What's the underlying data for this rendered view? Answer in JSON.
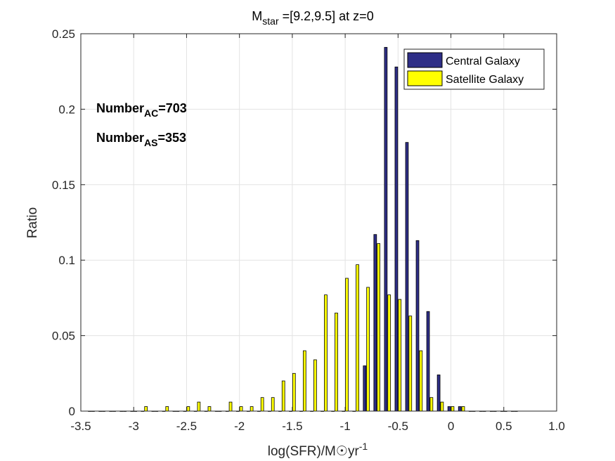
{
  "chart_data": {
    "type": "bar",
    "title": {
      "main": "M",
      "sub": "star",
      "rest": " =[9.2,9.5] at z=0"
    },
    "xlabel": {
      "main": "log(SFR)/M",
      "symbol": "☉",
      "unit": "yr",
      "exp": "-1"
    },
    "ylabel": "Ratio",
    "xlim": [
      -3.5,
      1.0
    ],
    "ylim": [
      0,
      0.25
    ],
    "xticks": [
      -3.5,
      -3,
      -2.5,
      -2,
      -1.5,
      -1,
      -0.5,
      0,
      0.5,
      1
    ],
    "xtick_labels": [
      "-3.5",
      "-3",
      "-2.5",
      "-2",
      "-1.5",
      "-1",
      "-0.5",
      "0",
      "0.5",
      "1.0"
    ],
    "yticks": [
      0,
      0.05,
      0.1,
      0.15,
      0.2,
      0.25
    ],
    "ytick_labels": [
      "0",
      "0.05",
      "0.1",
      "0.15",
      "0.2",
      "0.25"
    ],
    "grid": true,
    "legend_position": "top-right",
    "x": [
      -3.4,
      -3.3,
      -3.2,
      -3.1,
      -3.0,
      -2.9,
      -2.8,
      -2.7,
      -2.6,
      -2.5,
      -2.4,
      -2.3,
      -2.2,
      -2.1,
      -2.0,
      -1.9,
      -1.8,
      -1.7,
      -1.6,
      -1.5,
      -1.4,
      -1.3,
      -1.2,
      -1.1,
      -1.0,
      -0.9,
      -0.8,
      -0.7,
      -0.6,
      -0.5,
      -0.4,
      -0.3,
      -0.2,
      -0.1,
      0.0,
      0.1,
      0.2,
      0.3,
      0.4,
      0.5,
      0.6
    ],
    "series": [
      {
        "name": "Central Galaxy",
        "color": "#2e2e87",
        "values": [
          0,
          0,
          0,
          0,
          0,
          0,
          0,
          0,
          0,
          0,
          0,
          0,
          0,
          0,
          0,
          0,
          0,
          0,
          0,
          0,
          0,
          0,
          0,
          0,
          0,
          0,
          0.03,
          0.117,
          0.241,
          0.228,
          0.178,
          0.113,
          0.066,
          0.024,
          0.003,
          0.003,
          0,
          0,
          0,
          0,
          0
        ]
      },
      {
        "name": "Satellite Galaxy",
        "color": "#ffff00",
        "values": [
          0,
          0,
          0,
          0,
          0,
          0.003,
          0,
          0.003,
          0,
          0.003,
          0.006,
          0.003,
          0,
          0.006,
          0.003,
          0.003,
          0.009,
          0.009,
          0.02,
          0.025,
          0.04,
          0.034,
          0.077,
          0.065,
          0.088,
          0.097,
          0.082,
          0.111,
          0.077,
          0.074,
          0.063,
          0.04,
          0.009,
          0.006,
          0.003,
          0.003,
          0,
          0,
          0,
          0,
          0
        ]
      }
    ],
    "annotations": [
      {
        "main": "Number",
        "sub": "AC",
        "rest": "=703"
      },
      {
        "main": "Number",
        "sub": "AS",
        "rest": "=353"
      }
    ]
  }
}
